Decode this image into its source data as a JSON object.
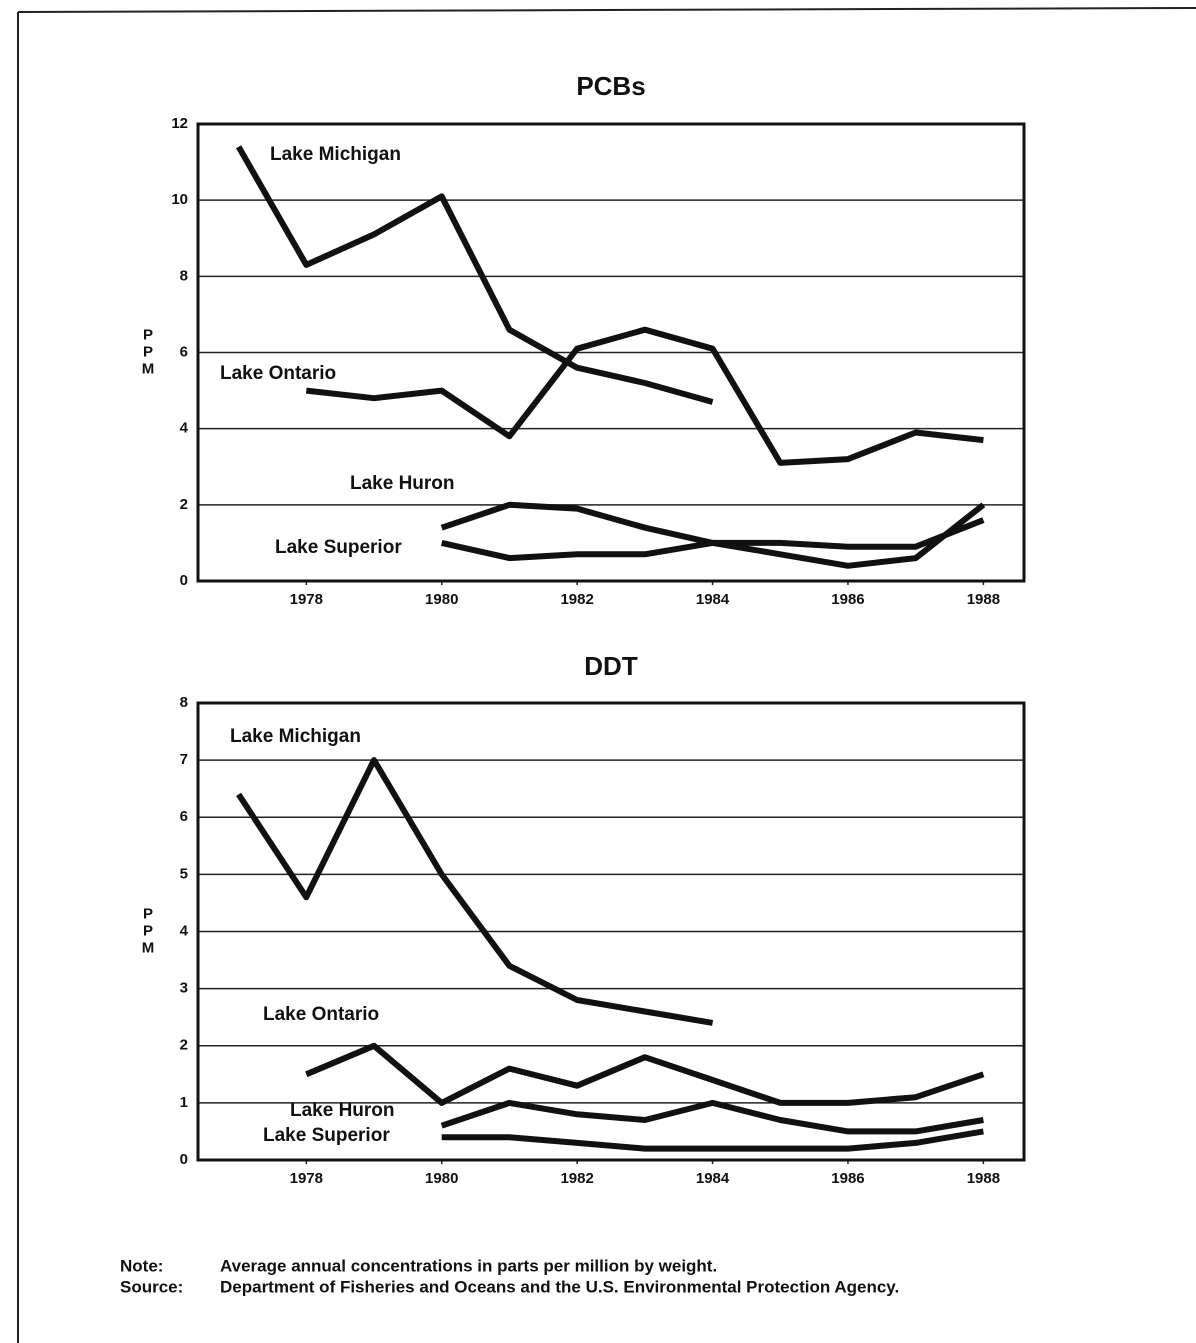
{
  "chart_data": [
    {
      "type": "line",
      "title": "PCBs",
      "ylabel": "PPM",
      "x": [
        1977,
        1978,
        1979,
        1980,
        1981,
        1982,
        1983,
        1984,
        1985,
        1986,
        1987,
        1988
      ],
      "xlim": [
        1976.4,
        1988.6
      ],
      "xticks": [
        1978,
        1980,
        1982,
        1984,
        1986,
        1988
      ],
      "ylim": [
        0,
        12
      ],
      "yticks": [
        0,
        2,
        4,
        6,
        8,
        10,
        12
      ],
      "grid": true,
      "series": [
        {
          "name": "Lake Michigan",
          "color": "#111111",
          "values": [
            11.4,
            8.3,
            9.1,
            10.1,
            6.6,
            5.6,
            5.2,
            4.7,
            null,
            null,
            null,
            null
          ]
        },
        {
          "name": "Lake Ontario",
          "color": "#111111",
          "values": [
            null,
            5.0,
            4.8,
            5.0,
            3.8,
            6.1,
            6.6,
            6.1,
            3.1,
            3.2,
            3.9,
            3.7
          ]
        },
        {
          "name": "Lake Huron",
          "color": "#111111",
          "values": [
            null,
            null,
            null,
            1.4,
            2.0,
            1.9,
            1.4,
            1.0,
            0.7,
            0.4,
            0.6,
            2.0
          ]
        },
        {
          "name": "Lake Superior",
          "color": "#111111",
          "values": [
            null,
            null,
            null,
            1.0,
            0.6,
            0.7,
            0.7,
            1.0,
            1.0,
            0.9,
            0.9,
            1.6
          ]
        }
      ]
    },
    {
      "type": "line",
      "title": "DDT",
      "ylabel": "PPM",
      "x": [
        1977,
        1978,
        1979,
        1980,
        1981,
        1982,
        1983,
        1984,
        1985,
        1986,
        1987,
        1988
      ],
      "xlim": [
        1976.4,
        1988.6
      ],
      "xticks": [
        1978,
        1980,
        1982,
        1984,
        1986,
        1988
      ],
      "ylim": [
        0,
        8
      ],
      "yticks": [
        0,
        1,
        2,
        3,
        4,
        5,
        6,
        7,
        8
      ],
      "grid": true,
      "series": [
        {
          "name": "Lake Michigan",
          "color": "#111111",
          "values": [
            6.4,
            4.6,
            7.0,
            5.0,
            3.4,
            2.8,
            2.6,
            2.4,
            null,
            null,
            null,
            null
          ]
        },
        {
          "name": "Lake Ontario",
          "color": "#111111",
          "values": [
            null,
            1.5,
            2.0,
            1.0,
            1.6,
            1.3,
            1.8,
            1.4,
            1.0,
            1.0,
            1.1,
            1.5
          ]
        },
        {
          "name": "Lake Huron",
          "color": "#111111",
          "values": [
            null,
            null,
            null,
            0.6,
            1.0,
            0.8,
            0.7,
            1.0,
            0.7,
            0.5,
            0.5,
            0.7
          ]
        },
        {
          "name": "Lake Superior",
          "color": "#111111",
          "values": [
            null,
            null,
            null,
            0.4,
            0.4,
            0.3,
            0.2,
            0.2,
            0.2,
            0.2,
            0.3,
            0.5
          ]
        }
      ]
    }
  ],
  "footer": {
    "note_label": "Note:",
    "note": "Average annual concentrations in parts per million by weight.",
    "source_label": "Source:",
    "source": "Department of Fisheries and Oceans and the U.S. Environmental Protection Agency."
  }
}
